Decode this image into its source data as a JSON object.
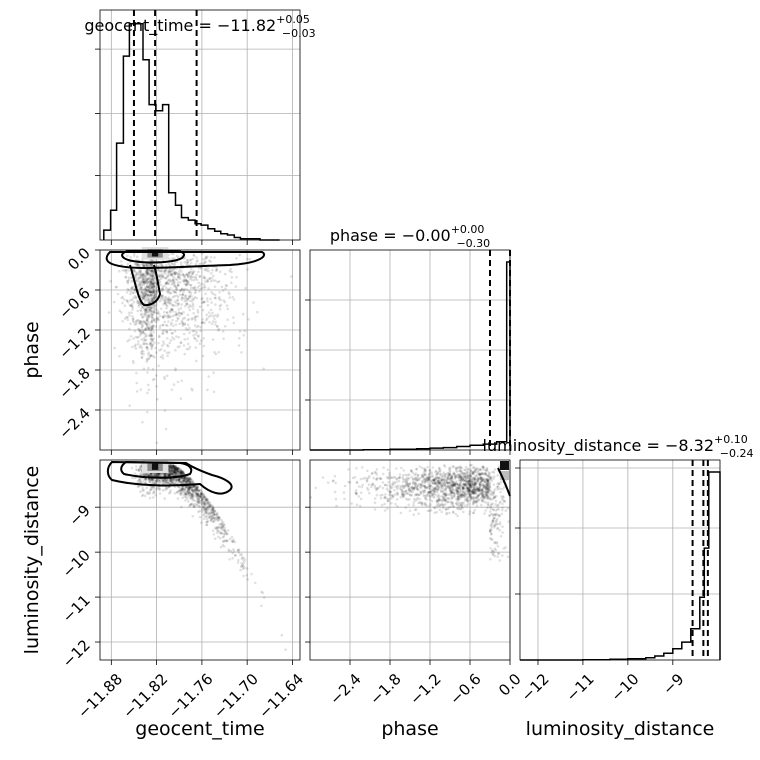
{
  "chart_data": {
    "type": "corner",
    "parameters": [
      "geocent_time",
      "phase",
      "luminosity_distance"
    ],
    "titles": [
      {
        "param": "geocent_time",
        "label": "geocent_time = −11.82",
        "plus": "+0.05",
        "minus": "−0.03"
      },
      {
        "param": "phase",
        "label": "phase = −0.00",
        "plus": "+0.00",
        "minus": "−0.30"
      },
      {
        "param": "luminosity_distance",
        "label": "luminosity_distance = −8.32",
        "plus": "+0.10",
        "minus": "−0.24"
      }
    ],
    "axis_labels": {
      "geocent_time": "geocent_time",
      "phase": "phase",
      "luminosity_distance": "luminosity_distance"
    },
    "ranges": {
      "geocent_time": [
        -11.895,
        -11.63
      ],
      "phase": [
        -3.0,
        0.0
      ],
      "luminosity_distance": [
        -12.4,
        -7.95
      ]
    },
    "ticks": {
      "geocent_time": [
        "−11.88",
        "−11.82",
        "−11.76",
        "−11.70",
        "−11.64"
      ],
      "geocent_time_values": [
        -11.88,
        -11.82,
        -11.76,
        -11.7,
        -11.64
      ],
      "phase": [
        "−2.4",
        "−1.8",
        "−1.2",
        "−0.6",
        "0.0"
      ],
      "phase_values": [
        -2.4,
        -1.8,
        -1.2,
        -0.6,
        0.0
      ],
      "luminosity_distance_x": [
        "−12",
        "−11",
        "−10",
        "−9"
      ],
      "luminosity_distance_x_values": [
        -12,
        -11,
        -10,
        -9
      ],
      "luminosity_distance_y": [
        "−9",
        "−10",
        "−11",
        "−12"
      ],
      "luminosity_distance_y_values": [
        -9,
        -10,
        -11,
        -12
      ],
      "phase_y": [
        "0.0",
        "−0.6",
        "−1.2",
        "−1.8",
        "−2.4"
      ],
      "phase_y_values": [
        0.0,
        -0.6,
        -1.2,
        -1.8,
        -2.4
      ]
    },
    "hist_geocent_time": {
      "edges": [
        -11.89,
        -11.881,
        -11.873,
        -11.864,
        -11.856,
        -11.847,
        -11.838,
        -11.83,
        -11.821,
        -11.812,
        -11.804,
        -11.795,
        -11.787,
        -11.778,
        -11.769,
        -11.761,
        -11.752,
        -11.743,
        -11.735,
        -11.726,
        -11.717,
        -11.709,
        -11.7,
        -11.692,
        -11.683,
        -11.675,
        -11.666,
        -11.657
      ],
      "counts": [
        8,
        24,
        78,
        148,
        174,
        174,
        145,
        109,
        104,
        109,
        38,
        28,
        18,
        16,
        13,
        12,
        9,
        7,
        5,
        4,
        2,
        1,
        1,
        1,
        0,
        0,
        0
      ],
      "quantiles": [
        -11.85,
        -11.822,
        -11.767
      ]
    },
    "hist_phase": {
      "edges": [
        -3.0,
        -2.6,
        -2.2,
        -1.8,
        -1.4,
        -1.2,
        -1.0,
        -0.8,
        -0.6,
        -0.4,
        -0.2,
        -0.05,
        0.0
      ],
      "counts": [
        0,
        0,
        0.1,
        0.3,
        0.5,
        0.8,
        1.0,
        1.5,
        2.0,
        2.5,
        3.5,
        80
      ],
      "quantiles": [
        -0.3,
        0.0,
        0.0
      ]
    },
    "hist_luminosity_distance": {
      "edges": [
        -12.4,
        -11.0,
        -10.4,
        -10.0,
        -9.6,
        -9.4,
        -9.2,
        -9.0,
        -8.8,
        -8.6,
        -8.4,
        -8.3,
        -8.2,
        -8.1,
        -7.95
      ],
      "counts": [
        0,
        0.1,
        0.3,
        0.6,
        1.0,
        1.8,
        3,
        5,
        8,
        14,
        28,
        50,
        84,
        84
      ],
      "quantiles": [
        -8.56,
        -8.32,
        -8.22
      ]
    },
    "scatter_geocent_phase": {
      "core": {
        "x": -11.822,
        "y": -0.05
      },
      "tail_extent": {
        "x": [
          -11.88,
          -11.66
        ],
        "y": [
          -2.9,
          0.0
        ]
      }
    },
    "scatter_geocent_lumdist": {
      "core": {
        "x": -11.822,
        "y": -8.1
      },
      "tail_extent": {
        "x": [
          -11.88,
          -11.66
        ],
        "y": [
          -11.6,
          -7.95
        ]
      }
    },
    "scatter_phase_lumdist": {
      "core": {
        "x": -0.02,
        "y": -8.1
      },
      "tail_extent": {
        "x": [
          -2.9,
          0.0
        ],
        "y": [
          -10.6,
          -7.95
        ]
      }
    },
    "grid": true
  }
}
